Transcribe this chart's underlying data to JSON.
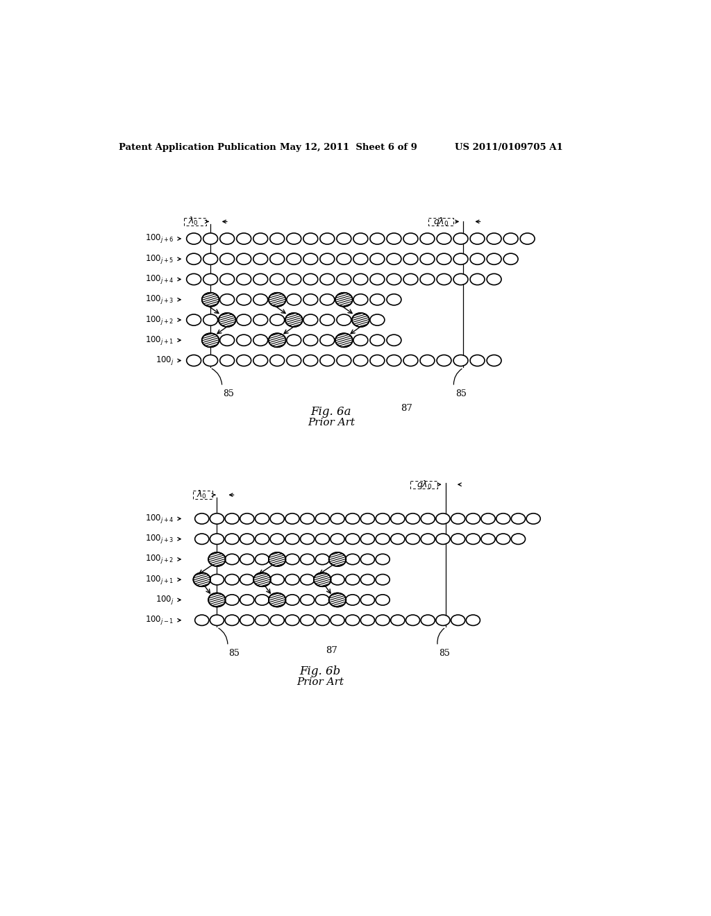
{
  "bg_color": "#ffffff",
  "header_left": "Patent Application Publication",
  "header_mid": "May 12, 2011  Sheet 6 of 9",
  "header_right": "US 2011/0109705 A1",
  "fig6a_label": "Fig. 6a",
  "fig6a_sublabel": "Prior Art",
  "fig6b_label": "Fig. 6b",
  "fig6b_sublabel": "Prior Art",
  "ref85": "85",
  "ref87": "87"
}
